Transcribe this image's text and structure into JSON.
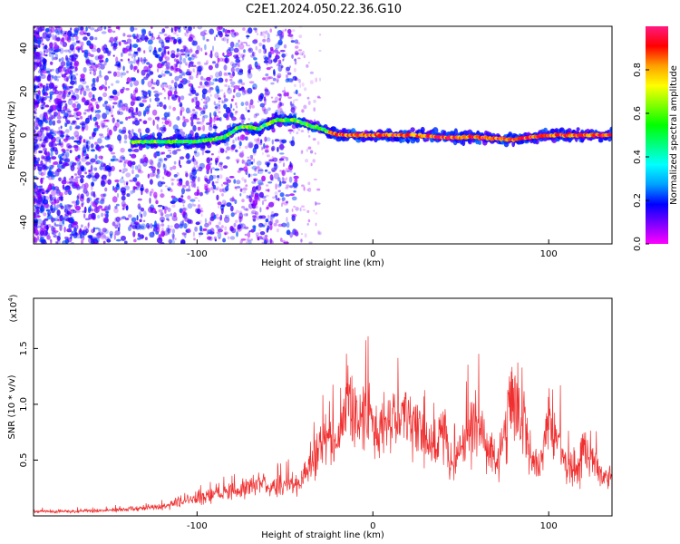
{
  "title": "C2E1.2024.050.22.36.G10",
  "chart_data": [
    {
      "type": "heatmap",
      "xlabel": "Height of straight line (km)",
      "ylabel": "Frequency (Hz)",
      "xlim": [
        -193,
        136
      ],
      "ylim": [
        -50,
        50
      ],
      "xticks": [
        -100,
        0,
        100
      ],
      "yticks": [
        -40,
        -20,
        0,
        20,
        40
      ],
      "colorbar": {
        "label": "Normalized spectral amplitude",
        "range": [
          0,
          1
        ],
        "ticks": [
          0.0,
          0.2,
          0.4,
          0.6,
          0.8
        ],
        "colormap": [
          "#ff00ff",
          "#7f00ff",
          "#0000ff",
          "#00a0ff",
          "#00ffff",
          "#00ff80",
          "#00ff00",
          "#80ff00",
          "#ffff00",
          "#ffa000",
          "#ff0000",
          "#ff1a80"
        ]
      },
      "ridge": {
        "x": [
          -137,
          -120,
          -100,
          -85,
          -75,
          -65,
          -55,
          -45,
          -38,
          -30,
          -20,
          -10,
          0,
          20,
          40,
          60,
          80,
          100,
          120,
          136
        ],
        "y": [
          -3,
          -3,
          -3,
          -1,
          4,
          3,
          7,
          7,
          5,
          3,
          0,
          0,
          0,
          0,
          -1,
          -1,
          -2,
          0,
          0,
          0
        ]
      }
    },
    {
      "type": "line",
      "xlabel": "Height of straight line (km)",
      "ylabel": "SNR (10 * v/v)",
      "scale_label": "(x10",
      "scale_exponent": "4",
      "scale_suffix": ")",
      "xlim": [
        -193,
        136
      ],
      "ylim": [
        0,
        1.95
      ],
      "xticks": [
        -100,
        0,
        100
      ],
      "yticks": [
        0.5,
        1.0,
        1.5
      ],
      "ytick_labels": [
        "0.5",
        "1.0",
        "1.5"
      ],
      "line_color": "#f03030",
      "series": [
        {
          "x": [
            -193,
            -170,
            -150,
            -130,
            -120,
            -110,
            -100,
            -90,
            -80,
            -72,
            -65,
            -58,
            -50,
            -42,
            -35,
            -30,
            -25,
            -20,
            -15,
            -13,
            -10,
            -5,
            0,
            5,
            10,
            15,
            20,
            25,
            30,
            35,
            40,
            45,
            50,
            55,
            60,
            65,
            70,
            75,
            78,
            80,
            85,
            90,
            95,
            100,
            105,
            110,
            115,
            120,
            125,
            130,
            136
          ],
          "y": [
            0.04,
            0.04,
            0.05,
            0.07,
            0.08,
            0.12,
            0.16,
            0.18,
            0.22,
            0.25,
            0.32,
            0.25,
            0.28,
            0.3,
            0.45,
            0.62,
            0.68,
            0.65,
            1.0,
            1.18,
            0.9,
            0.88,
            0.85,
            0.8,
            0.85,
            0.83,
            0.9,
            0.8,
            0.75,
            0.55,
            0.78,
            0.45,
            0.58,
            0.75,
            0.85,
            0.6,
            0.45,
            0.72,
            1.1,
            1.2,
            0.85,
            0.55,
            0.45,
            0.95,
            0.72,
            0.42,
            0.35,
            0.58,
            0.5,
            0.32,
            0.4
          ]
        }
      ]
    }
  ]
}
